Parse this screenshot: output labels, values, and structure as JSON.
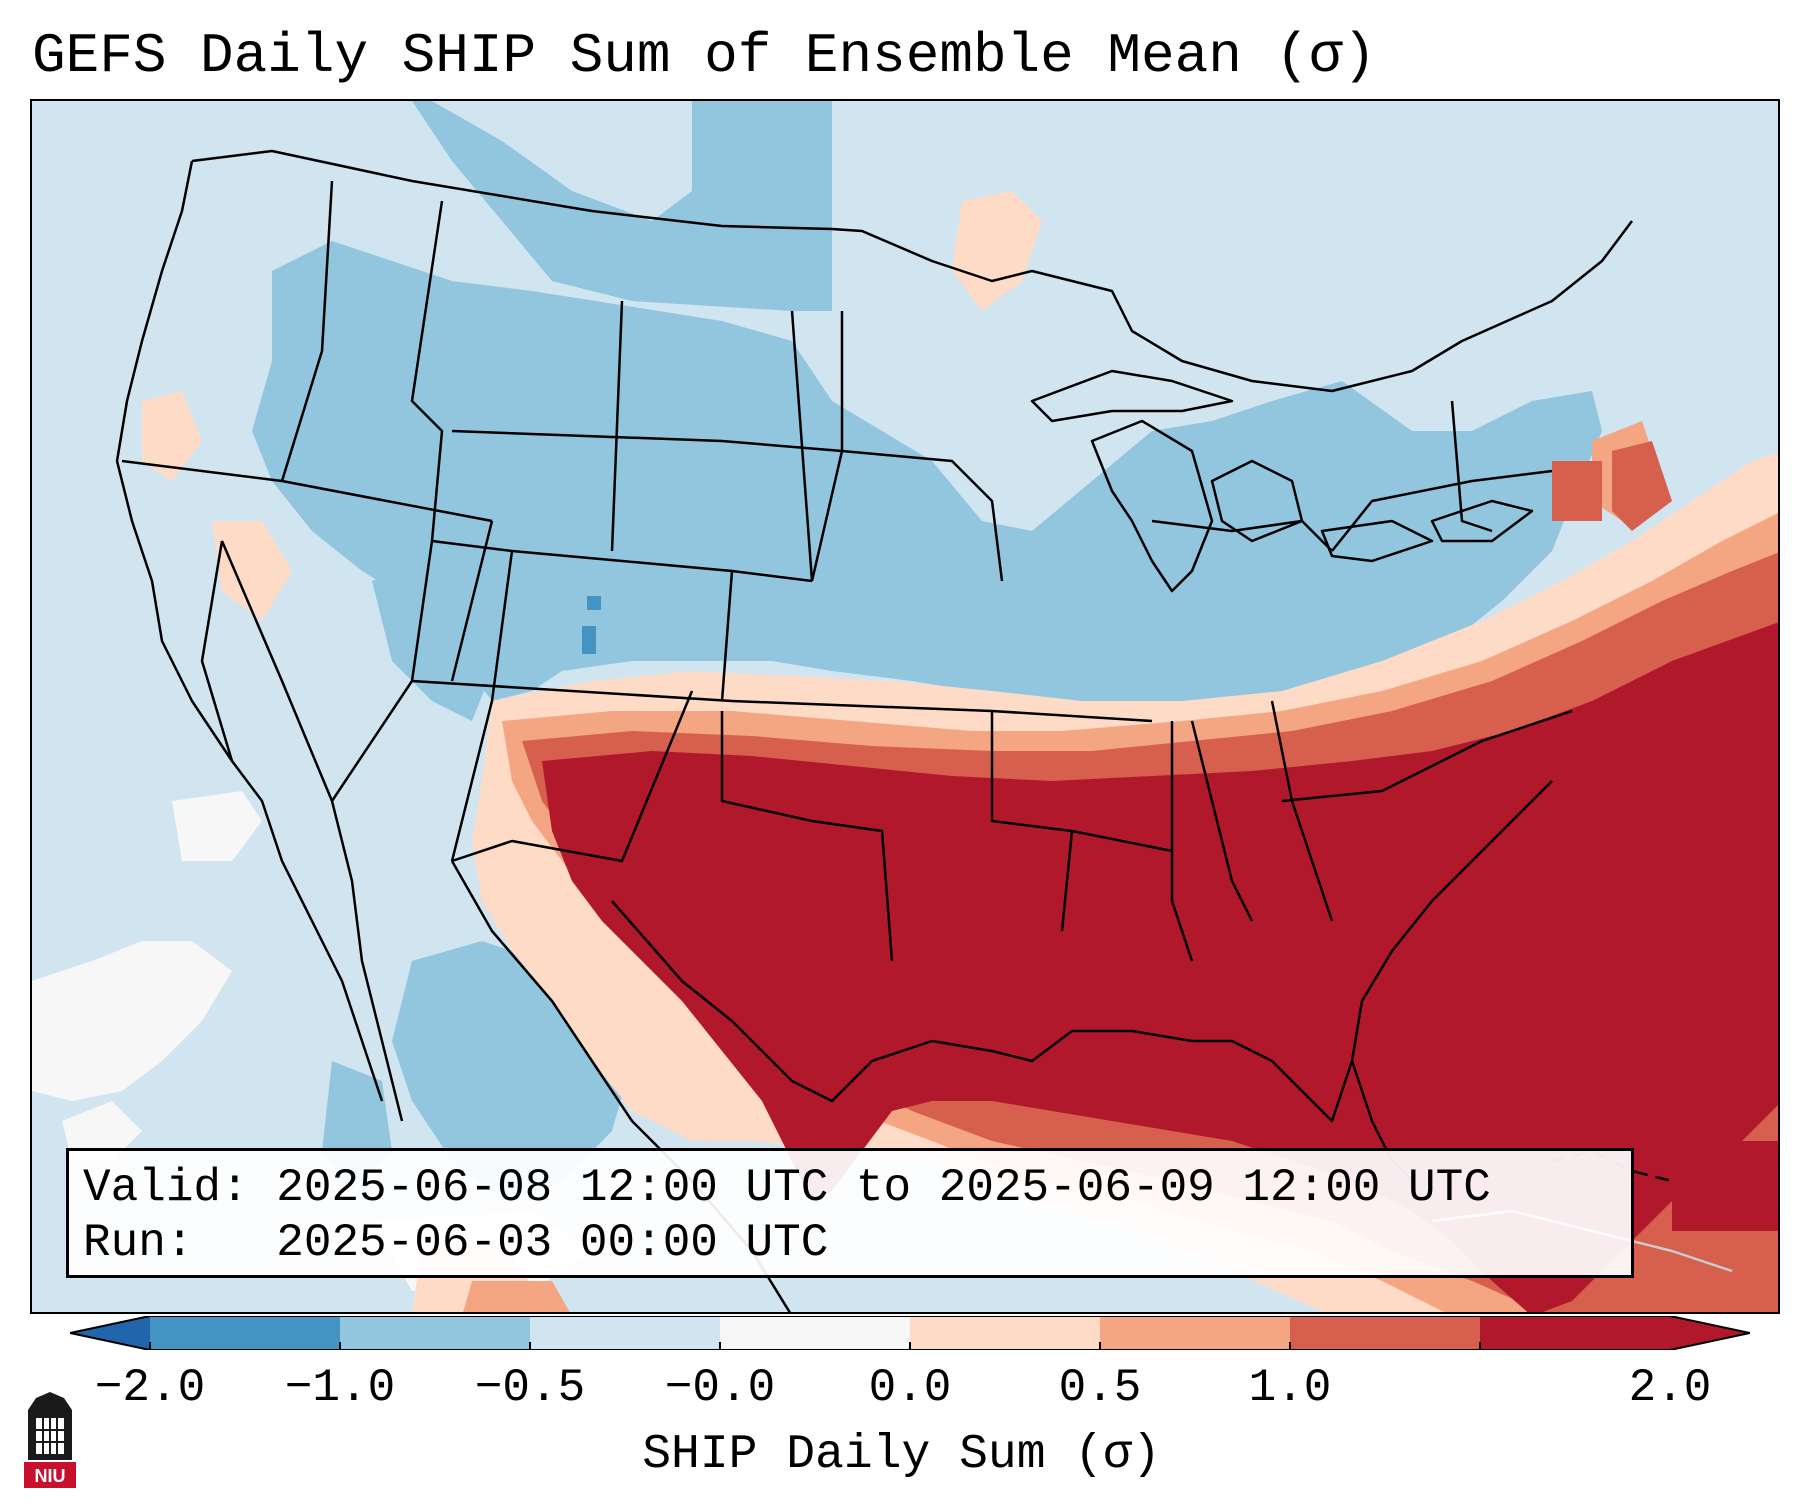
{
  "title": "GEFS Daily SHIP Sum of Ensemble Mean (σ)",
  "info": {
    "valid_line": "Valid: 2025-06-08 12:00 UTC to 2025-06-09 12:00 UTC",
    "run_line": "Run:   2025-06-03 00:00 UTC"
  },
  "colorbar": {
    "label": "SHIP Daily Sum (σ)",
    "ticks": [
      "−2.0",
      "−1.0",
      "−0.5",
      "−0.0",
      "0.0",
      "0.5",
      "1.0",
      "2.0"
    ],
    "colors": [
      "#4393c3",
      "#92c5de",
      "#d1e5f0",
      "#f7f7f7",
      "#fddbc7",
      "#f4a582",
      "#d6604d",
      "#b2182b"
    ],
    "extend_low_color": "#2166ac",
    "extend_high_color": "#b2182b"
  },
  "logo": {
    "text": "NIU"
  },
  "map": {
    "domain": "Continental United States with adjacent Canada, Mexico, Gulf of Mexico and Caribbean",
    "field": "SHIP daily sum standardized anomaly"
  }
}
